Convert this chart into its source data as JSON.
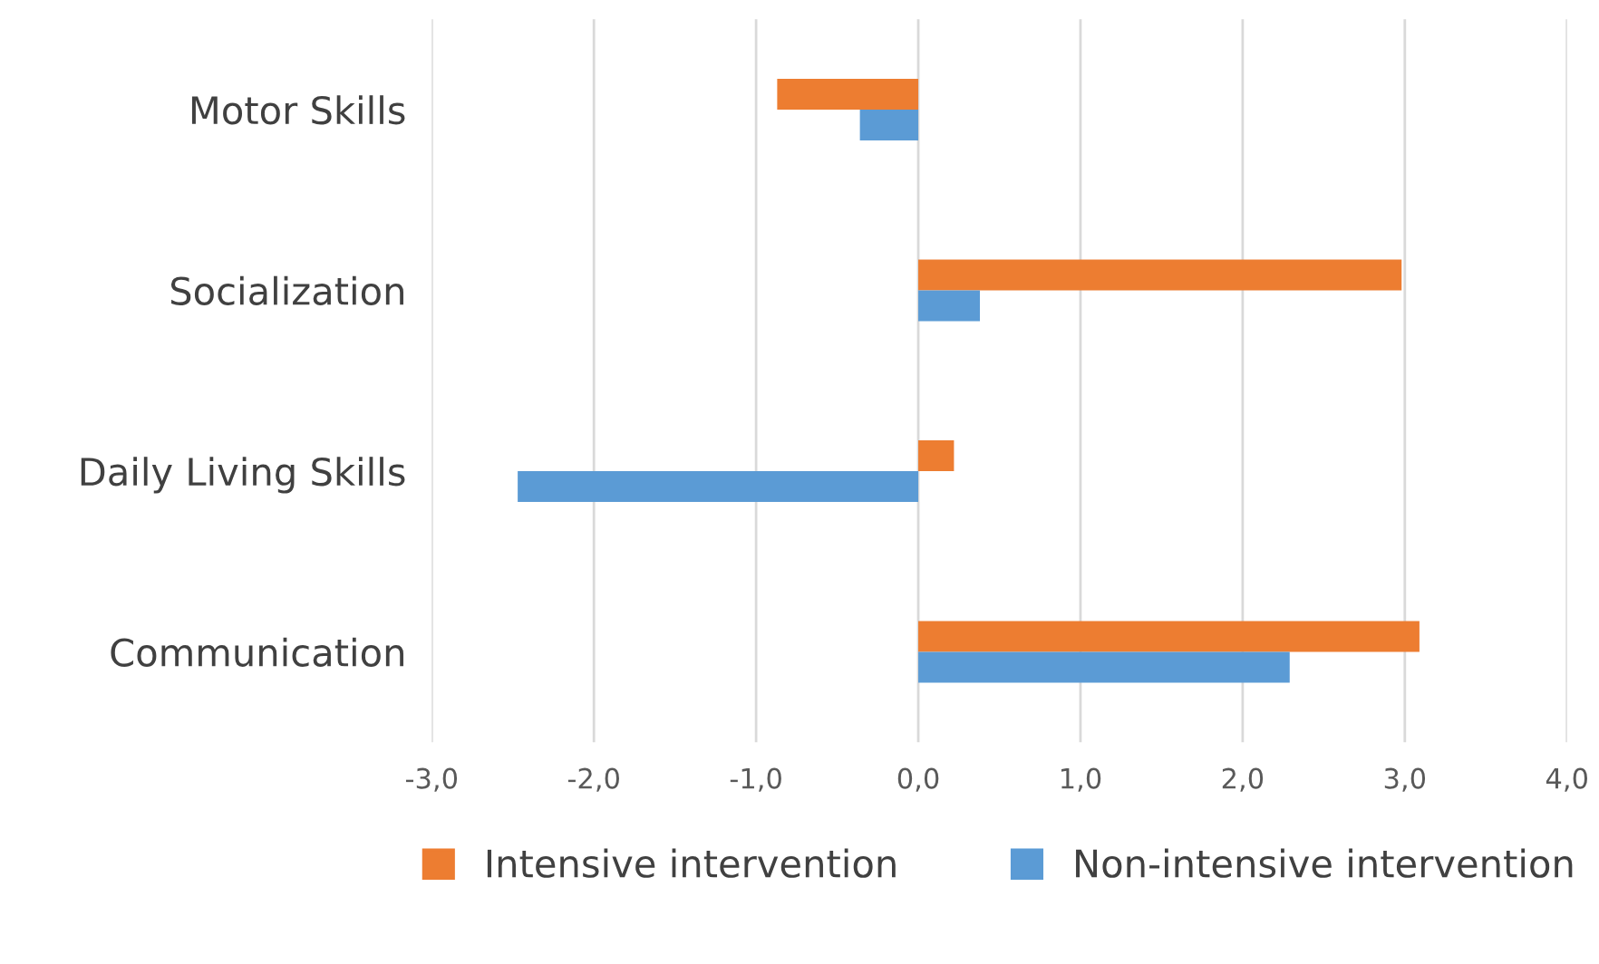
{
  "chart_data": {
    "type": "bar",
    "orientation": "horizontal",
    "categories": [
      "Motor Skills",
      "Socialization",
      "Daily Living Skills",
      "Communication"
    ],
    "series": [
      {
        "name": "Intensive intervention",
        "color": "#ed7d31",
        "values": [
          -0.87,
          2.98,
          0.22,
          3.09
        ]
      },
      {
        "name": "Non-intensive intervention",
        "color": "#5b9bd5",
        "values": [
          -0.36,
          0.38,
          -2.47,
          2.29
        ]
      }
    ],
    "xlim": [
      -3,
      4
    ],
    "xticks": [
      {
        "value": -3,
        "label": "-3,0"
      },
      {
        "value": -2,
        "label": "-2,0"
      },
      {
        "value": -1,
        "label": "-1,0"
      },
      {
        "value": 0,
        "label": "0,0"
      },
      {
        "value": 1,
        "label": "1,0"
      },
      {
        "value": 2,
        "label": "2,0"
      },
      {
        "value": 3,
        "label": "3,0"
      },
      {
        "value": 4,
        "label": "4,0"
      }
    ],
    "grid": "x",
    "legend": "bottom"
  }
}
